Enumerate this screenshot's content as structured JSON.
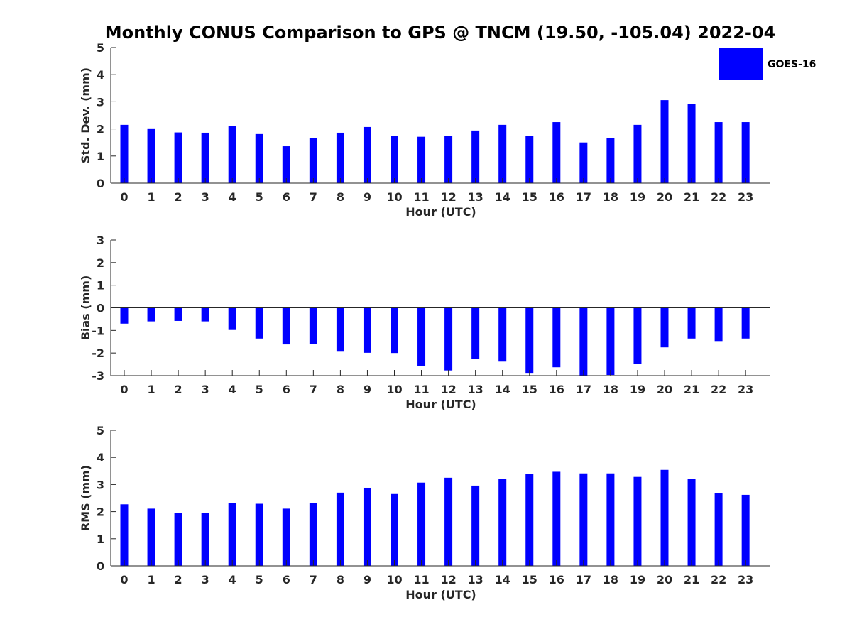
{
  "figure": {
    "title": "Monthly CONUS Comparison to GPS @ TNCM (19.50, -105.04) 2022-04",
    "bar_color": "#0000ff",
    "legend": {
      "label": "GOES-16",
      "position": "top-right"
    }
  },
  "chart_data": [
    {
      "type": "bar",
      "xlabel": "Hour (UTC)",
      "ylabel": "Std. Dev. (mm)",
      "ylim": [
        0,
        5
      ],
      "yticks": [
        0,
        1,
        2,
        3,
        4,
        5
      ],
      "categories": [
        "0",
        "1",
        "2",
        "3",
        "4",
        "5",
        "6",
        "7",
        "8",
        "9",
        "10",
        "11",
        "12",
        "13",
        "14",
        "15",
        "16",
        "17",
        "18",
        "19",
        "20",
        "21",
        "22",
        "23"
      ],
      "series": [
        {
          "name": "GOES-16",
          "values": [
            2.15,
            2.02,
            1.87,
            1.86,
            2.12,
            1.81,
            1.36,
            1.66,
            1.86,
            2.07,
            1.75,
            1.71,
            1.75,
            1.94,
            2.15,
            1.73,
            2.25,
            1.5,
            1.66,
            2.15,
            3.06,
            2.91,
            2.25,
            2.25
          ]
        }
      ]
    },
    {
      "type": "bar",
      "xlabel": "Hour (UTC)",
      "ylabel": "Bias (mm)",
      "ylim": [
        -3,
        3
      ],
      "yticks": [
        -3,
        -2,
        -1,
        0,
        1,
        2,
        3
      ],
      "categories": [
        "0",
        "1",
        "2",
        "3",
        "4",
        "5",
        "6",
        "7",
        "8",
        "9",
        "10",
        "11",
        "12",
        "13",
        "14",
        "15",
        "16",
        "17",
        "18",
        "19",
        "20",
        "21",
        "22",
        "23"
      ],
      "series": [
        {
          "name": "GOES-16",
          "values": [
            -0.7,
            -0.6,
            -0.58,
            -0.6,
            -0.98,
            -1.36,
            -1.62,
            -1.6,
            -1.94,
            -1.99,
            -2.0,
            -2.56,
            -2.77,
            -2.25,
            -2.38,
            -2.91,
            -2.63,
            -3.04,
            -2.97,
            -2.47,
            -1.75,
            -1.36,
            -1.47,
            -1.36
          ]
        }
      ]
    },
    {
      "type": "bar",
      "xlabel": "Hour (UTC)",
      "ylabel": "RMS (mm)",
      "ylim": [
        0,
        5
      ],
      "yticks": [
        0,
        1,
        2,
        3,
        4,
        5
      ],
      "categories": [
        "0",
        "1",
        "2",
        "3",
        "4",
        "5",
        "6",
        "7",
        "8",
        "9",
        "10",
        "11",
        "12",
        "13",
        "14",
        "15",
        "16",
        "17",
        "18",
        "19",
        "20",
        "21",
        "22",
        "23"
      ],
      "series": [
        {
          "name": "GOES-16",
          "values": [
            2.27,
            2.11,
            1.95,
            1.95,
            2.32,
            2.29,
            2.11,
            2.32,
            2.7,
            2.88,
            2.65,
            3.07,
            3.25,
            2.96,
            3.2,
            3.39,
            3.47,
            3.41,
            3.41,
            3.28,
            3.54,
            3.22,
            2.67,
            2.62
          ]
        }
      ]
    }
  ]
}
